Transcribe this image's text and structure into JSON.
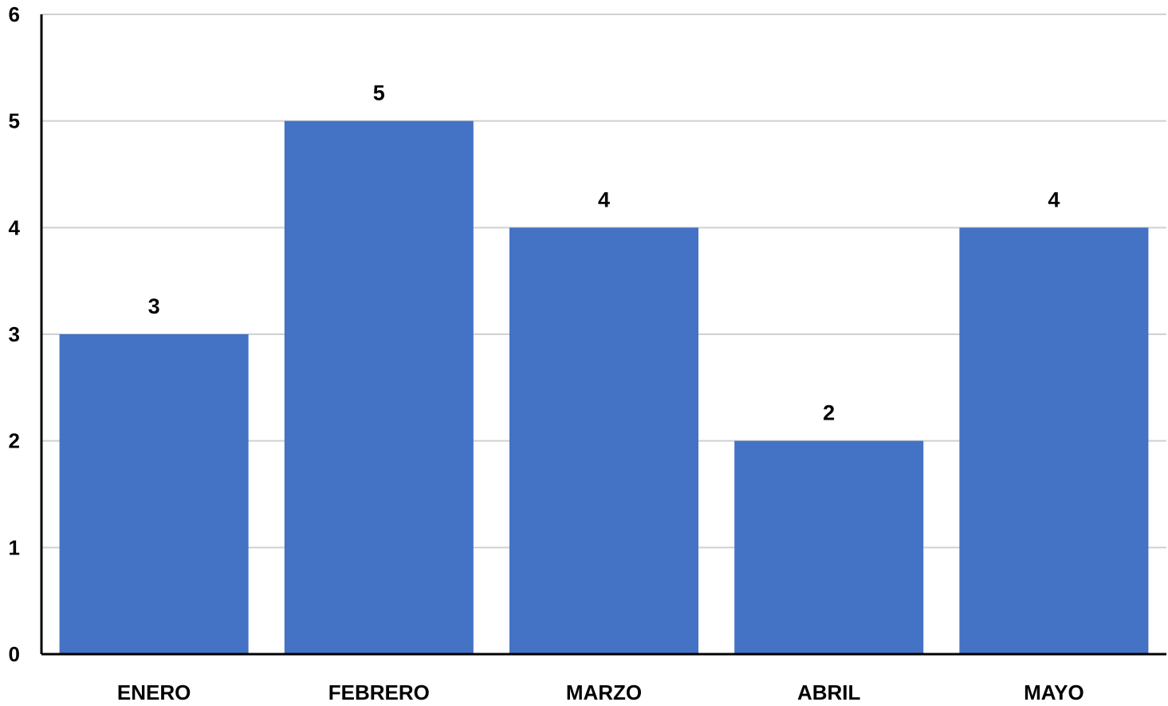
{
  "chart_data": {
    "type": "bar",
    "categories": [
      "ENERO",
      "FEBRERO",
      "MARZO",
      "ABRIL",
      "MAYO"
    ],
    "values": [
      3,
      5,
      4,
      2,
      4
    ],
    "data_labels": [
      "3",
      "5",
      "4",
      "2",
      "4"
    ],
    "title": "",
    "xlabel": "",
    "ylabel": "",
    "ylim": [
      0,
      6
    ],
    "yticks": [
      "0",
      "1",
      "2",
      "3",
      "4",
      "5",
      "6"
    ],
    "grid": true,
    "legend": "none",
    "bar_color": "#4472C4"
  }
}
